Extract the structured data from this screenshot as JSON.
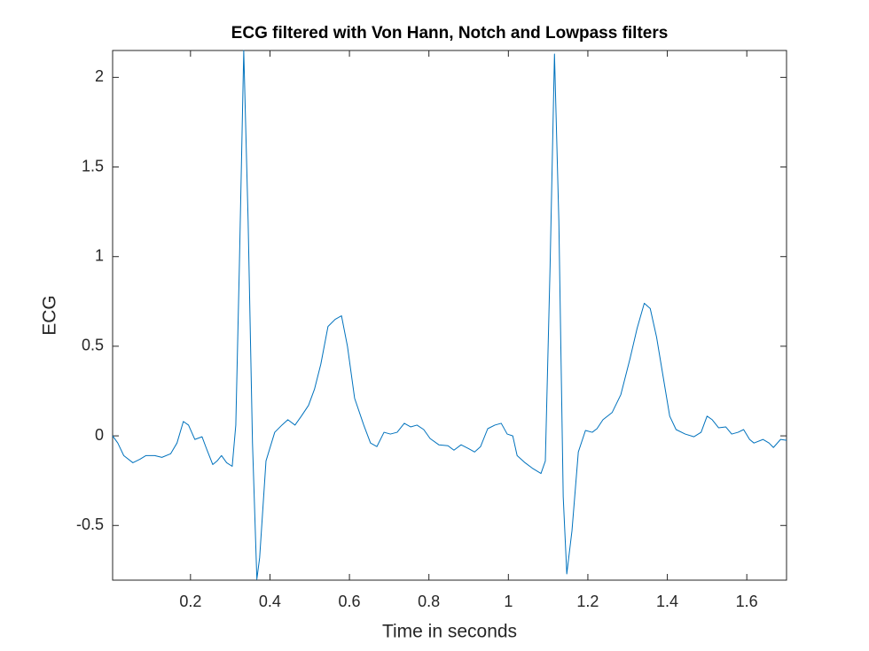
{
  "chart_data": {
    "type": "line",
    "title": "ECG filtered with Von Hann, Notch and Lowpass filters",
    "x_label": "Time in seconds",
    "y_label": "ECG",
    "x": [
      0.004,
      0.017,
      0.032,
      0.055,
      0.073,
      0.088,
      0.11,
      0.128,
      0.15,
      0.166,
      0.182,
      0.195,
      0.211,
      0.229,
      0.24,
      0.256,
      0.267,
      0.278,
      0.291,
      0.305,
      0.314,
      0.323,
      0.334,
      0.345,
      0.356,
      0.367,
      0.374,
      0.39,
      0.412,
      0.43,
      0.445,
      0.463,
      0.479,
      0.497,
      0.512,
      0.528,
      0.546,
      0.564,
      0.58,
      0.595,
      0.613,
      0.636,
      0.653,
      0.669,
      0.687,
      0.703,
      0.72,
      0.738,
      0.754,
      0.77,
      0.787,
      0.803,
      0.825,
      0.848,
      0.863,
      0.881,
      0.899,
      0.915,
      0.93,
      0.948,
      0.966,
      0.982,
      0.997,
      1.011,
      1.022,
      1.042,
      1.06,
      1.082,
      1.093,
      1.105,
      1.116,
      1.127,
      1.138,
      1.147,
      1.16,
      1.176,
      1.194,
      1.211,
      1.223,
      1.238,
      1.261,
      1.283,
      1.306,
      1.324,
      1.342,
      1.357,
      1.373,
      1.391,
      1.406,
      1.422,
      1.445,
      1.467,
      1.485,
      1.5,
      1.513,
      1.529,
      1.547,
      1.562,
      1.578,
      1.592,
      1.607,
      1.618,
      1.641,
      1.656,
      1.667,
      1.685,
      1.7
    ],
    "series": [
      {
        "name": "ECG",
        "color": "#0072bd",
        "values": [
          0,
          -0.04,
          -0.11,
          -0.15,
          -0.13,
          -0.11,
          -0.11,
          -0.12,
          -0.1,
          -0.04,
          0.08,
          0.06,
          -0.02,
          -0.005,
          -0.07,
          -0.16,
          -0.14,
          -0.11,
          -0.15,
          -0.17,
          0.06,
          0.95,
          2.15,
          1.2,
          -0.04,
          -0.8,
          -0.68,
          -0.14,
          0.02,
          0.06,
          0.09,
          0.06,
          0.11,
          0.17,
          0.26,
          0.4,
          0.61,
          0.65,
          0.67,
          0.5,
          0.21,
          0.06,
          -0.04,
          -0.06,
          0.02,
          0.01,
          0.02,
          0.07,
          0.05,
          0.06,
          0.035,
          -0.015,
          -0.05,
          -0.055,
          -0.08,
          -0.05,
          -0.07,
          -0.09,
          -0.06,
          0.04,
          0.06,
          0.07,
          0.01,
          0,
          -0.11,
          -0.15,
          -0.18,
          -0.21,
          -0.14,
          0.95,
          2.13,
          1.2,
          -0.34,
          -0.77,
          -0.53,
          -0.09,
          0.03,
          0.02,
          0.04,
          0.09,
          0.13,
          0.23,
          0.43,
          0.6,
          0.74,
          0.71,
          0.55,
          0.31,
          0.11,
          0.035,
          0.01,
          -0.005,
          0.02,
          0.11,
          0.09,
          0.045,
          0.05,
          0.01,
          0.02,
          0.035,
          -0.02,
          -0.04,
          -0.02,
          -0.04,
          -0.065,
          -0.02,
          -0.025
        ]
      }
    ],
    "xlim": [
      0.004,
      1.7
    ],
    "ylim": [
      -0.805,
      2.15
    ],
    "xticks": [
      0.2,
      0.4,
      0.6,
      0.8,
      1,
      1.2,
      1.4,
      1.6
    ],
    "yticks": [
      -0.5,
      0,
      0.5,
      1,
      1.5,
      2
    ],
    "grid": false
  }
}
